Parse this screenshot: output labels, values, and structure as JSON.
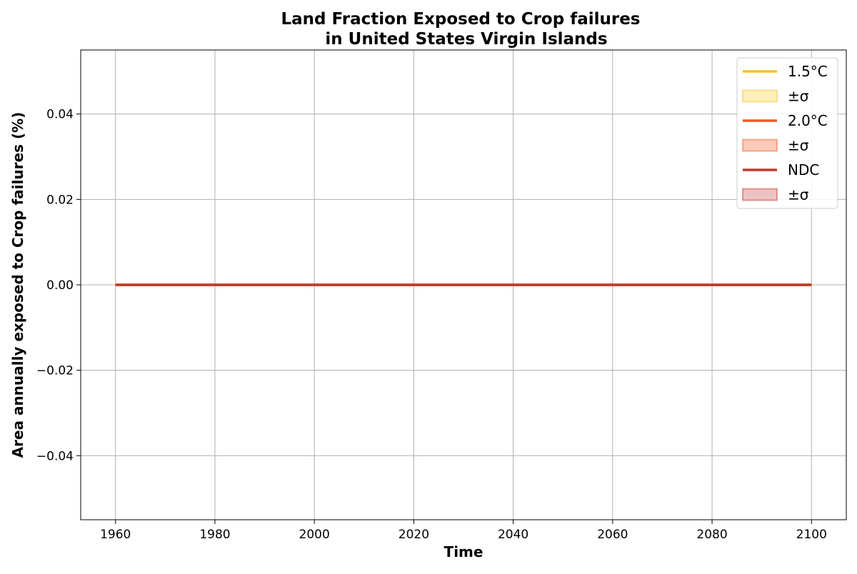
{
  "chart_data": {
    "type": "line",
    "title_line1": "Land Fraction Exposed to Crop failures",
    "title_line2": "in United States Virgin Islands",
    "xlabel": "Time",
    "ylabel": "Area annually exposed to Crop failures (%)",
    "xlim": [
      1953,
      2107
    ],
    "ylim": [
      -0.055,
      0.055
    ],
    "xticks": [
      1960,
      1980,
      2000,
      2020,
      2040,
      2060,
      2080,
      2100
    ],
    "yticks": [
      -0.04,
      -0.02,
      0.0,
      0.02,
      0.04
    ],
    "ytick_labels": [
      "−0.04",
      "−0.02",
      "0.00",
      "0.02",
      "0.04"
    ],
    "grid": true,
    "legend_position": "top-right",
    "series": [
      {
        "name": "1.5°C",
        "color": "#fbbf24",
        "x": [
          1960,
          2100
        ],
        "y": [
          0.0,
          0.0
        ],
        "band_label": "±σ",
        "band_color": "#fde68a"
      },
      {
        "name": "2.0°C",
        "color": "#f05a22",
        "x": [
          1960,
          2100
        ],
        "y": [
          0.0,
          0.0
        ],
        "band_label": "±σ",
        "band_color": "#fca88a"
      },
      {
        "name": "NDC",
        "color": "#c0392b",
        "x": [
          1960,
          2100
        ],
        "y": [
          0.0,
          0.0
        ],
        "band_label": "±σ",
        "band_color": "#e29a9a"
      }
    ]
  }
}
